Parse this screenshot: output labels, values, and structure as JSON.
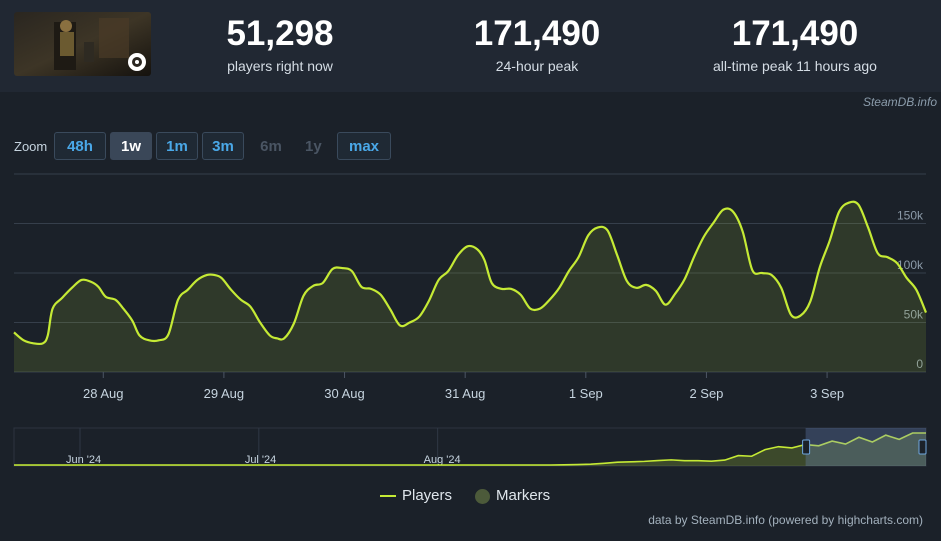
{
  "header": {
    "stats": [
      {
        "value": "51,298",
        "label": "players right now"
      },
      {
        "value": "171,490",
        "label": "24-hour peak"
      },
      {
        "value": "171,490",
        "label": "all-time peak 11 hours ago"
      }
    ],
    "credit": "SteamDB.info"
  },
  "zoom": {
    "label": "Zoom",
    "buttons": [
      {
        "label": "48h",
        "state": "enabled"
      },
      {
        "label": "1w",
        "state": "selected"
      },
      {
        "label": "1m",
        "state": "enabled"
      },
      {
        "label": "3m",
        "state": "enabled"
      },
      {
        "label": "6m",
        "state": "disabled"
      },
      {
        "label": "1y",
        "state": "disabled"
      },
      {
        "label": "max",
        "state": "enabled"
      }
    ]
  },
  "chart_data": {
    "type": "line",
    "series": [
      {
        "name": "Players",
        "color": "#c5ea35",
        "x": [
          0,
          0.08,
          0.16,
          0.24,
          0.28,
          0.32,
          0.4,
          0.48,
          0.56,
          0.64,
          0.7,
          0.76,
          0.84,
          0.9,
          0.98,
          1.04,
          1.12,
          1.2,
          1.28,
          1.36,
          1.44,
          1.52,
          1.6,
          1.66,
          1.72,
          1.8,
          1.88,
          1.96,
          2.04,
          2.12,
          2.18,
          2.24,
          2.32,
          2.4,
          2.48,
          2.56,
          2.64,
          2.72,
          2.8,
          2.88,
          2.96,
          3.04,
          3.12,
          3.2,
          3.28,
          3.36,
          3.44,
          3.52,
          3.6,
          3.68,
          3.76,
          3.84,
          3.9,
          3.96,
          4.04,
          4.12,
          4.2,
          4.28,
          4.36,
          4.44,
          4.52,
          4.6,
          4.68,
          4.76,
          4.84,
          4.92,
          5.0,
          5.08,
          5.16,
          5.24,
          5.32,
          5.4,
          5.48,
          5.56,
          5.64,
          5.72,
          5.8,
          5.88,
          5.96,
          6.04,
          6.12,
          6.2,
          6.28,
          6.36,
          6.44,
          6.52,
          6.6,
          6.68,
          6.76,
          6.84,
          6.92,
          7.0,
          7.08,
          7.16,
          7.24,
          7.32,
          7.4,
          7.48,
          7.56
        ],
        "values": [
          40,
          32,
          29,
          29,
          37,
          64,
          75,
          85,
          93,
          91,
          86,
          76,
          73,
          65,
          52,
          37,
          32,
          32,
          38,
          73,
          83,
          93,
          98,
          98,
          95,
          83,
          73,
          66,
          50,
          37,
          34,
          34,
          49,
          77,
          87,
          90,
          104,
          105,
          102,
          86,
          84,
          78,
          63,
          47,
          50,
          56,
          72,
          93,
          102,
          118,
          127,
          124,
          113,
          90,
          84,
          84,
          78,
          64,
          64,
          73,
          85,
          102,
          116,
          138,
          146,
          143,
          118,
          92,
          85,
          88,
          82,
          68,
          79,
          94,
          117,
          137,
          151,
          164,
          162,
          142,
          103,
          100,
          98,
          85,
          58,
          57,
          71,
          106,
          132,
          162,
          171,
          169,
          146,
          120,
          116,
          110,
          95,
          83,
          60
        ]
      }
    ],
    "x_tick_labels": [
      "28 Aug",
      "29 Aug",
      "30 Aug",
      "31 Aug",
      "1 Sep",
      "2 Sep",
      "3 Sep"
    ],
    "x_tick_positions": [
      0.74,
      1.74,
      2.74,
      3.74,
      4.74,
      5.74,
      6.74
    ],
    "xlim": [
      0,
      7.56
    ],
    "y_ticks": [
      0,
      50,
      100,
      150
    ],
    "y_tick_labels": [
      "0",
      "50k",
      "100k",
      "150k"
    ],
    "ylim": [
      0,
      200
    ],
    "grid": true,
    "legend": {
      "placement": "bottom-center",
      "items": [
        {
          "label": "Players",
          "color": "#c5ea35"
        },
        {
          "label": "Markers",
          "color": "#4c5a3a"
        }
      ]
    },
    "navigator": {
      "labels": [
        "Jun '24",
        "Jul '24",
        "Aug '24"
      ],
      "months_span": [
        0,
        5.1
      ],
      "label_positions": [
        0.3,
        1.3,
        2.3
      ],
      "series": [
        0,
        0,
        0,
        0,
        0,
        0,
        0,
        0,
        0,
        0,
        0,
        0,
        0,
        0,
        0,
        0,
        0,
        0,
        0,
        0,
        0,
        0,
        0,
        0,
        0,
        0,
        0,
        0,
        0,
        0,
        0,
        0,
        0,
        0,
        0,
        0,
        0,
        0,
        0,
        0,
        0,
        1,
        2,
        4,
        8,
        13,
        15,
        17,
        21,
        24,
        20,
        20,
        18,
        23,
        44,
        41,
        72,
        86,
        80,
        96,
        90,
        112,
        98,
        130,
        108,
        140,
        120,
        150,
        150
      ],
      "window_start_fraction": 0.868
    }
  },
  "footer": {
    "text": "data by SteamDB.info (powered by highcharts.com)"
  }
}
